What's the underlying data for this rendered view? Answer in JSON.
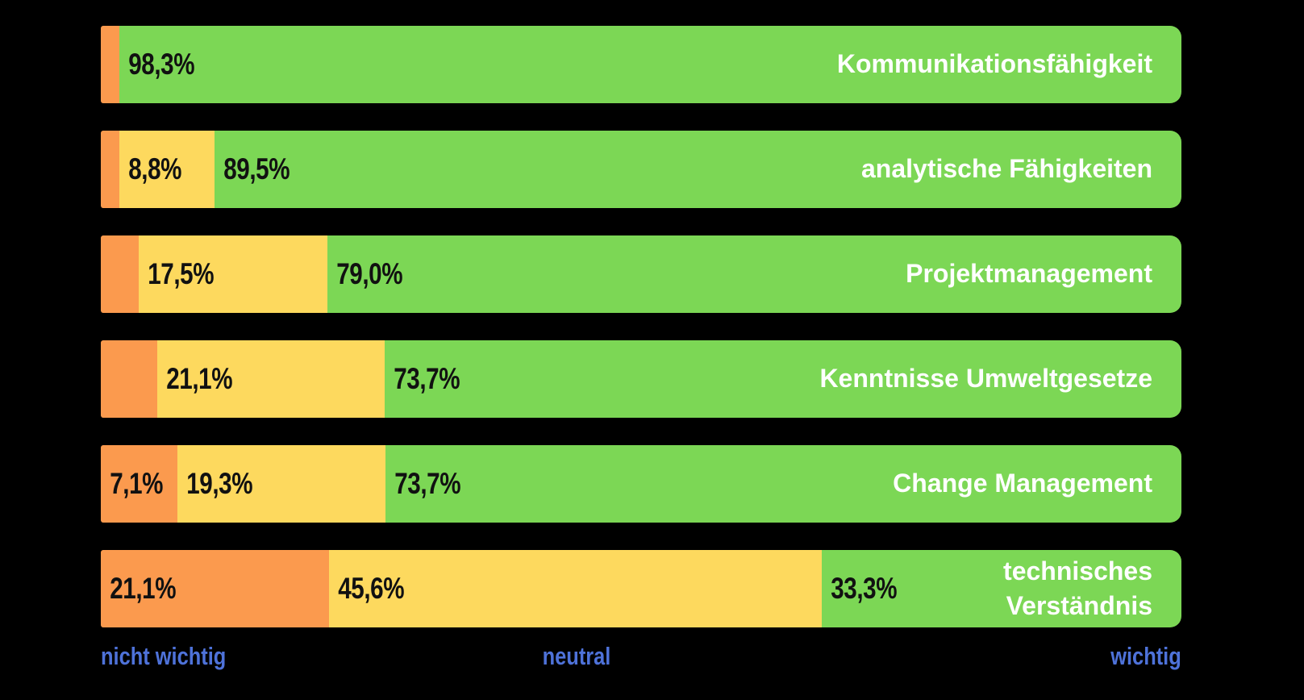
{
  "chart_data": {
    "type": "bar",
    "orientation": "horizontal",
    "stacked": true,
    "background": "#000000",
    "value_label_color": "#111111",
    "category_label_color": "#FFFFFF",
    "categories": [
      "Kommunikationsfähigkeit",
      "analytische Fähigkeiten",
      "Projektmanagement",
      "Kenntnisse Umweltgesetze",
      "Change Management",
      "technisches Verständnis"
    ],
    "series": [
      {
        "name": "nicht wichtig",
        "color": "#FB9A4E",
        "values": [
          1.7,
          1.7,
          3.5,
          5.2,
          7.1,
          21.1
        ],
        "labels": [
          "",
          "",
          "",
          "",
          "7,1%",
          "21,1%"
        ]
      },
      {
        "name": "neutral",
        "color": "#FDD95E",
        "values": [
          0,
          8.8,
          17.5,
          21.1,
          19.3,
          45.6
        ],
        "labels": [
          "",
          "8,8%",
          "17,5%",
          "21,1%",
          "19,3%",
          "45,6%"
        ]
      },
      {
        "name": "wichtig",
        "color": "#7CD755",
        "values": [
          98.3,
          89.5,
          79.0,
          73.7,
          73.7,
          33.3
        ],
        "labels": [
          "98,3%",
          "89,5%",
          "79,0%",
          "73,7%",
          "73,7%",
          "33,3%"
        ]
      }
    ],
    "axis": {
      "left_label": "nicht wichtig",
      "center_label": "neutral",
      "right_label": "wichtig",
      "label_color": "#4E72D9"
    }
  }
}
